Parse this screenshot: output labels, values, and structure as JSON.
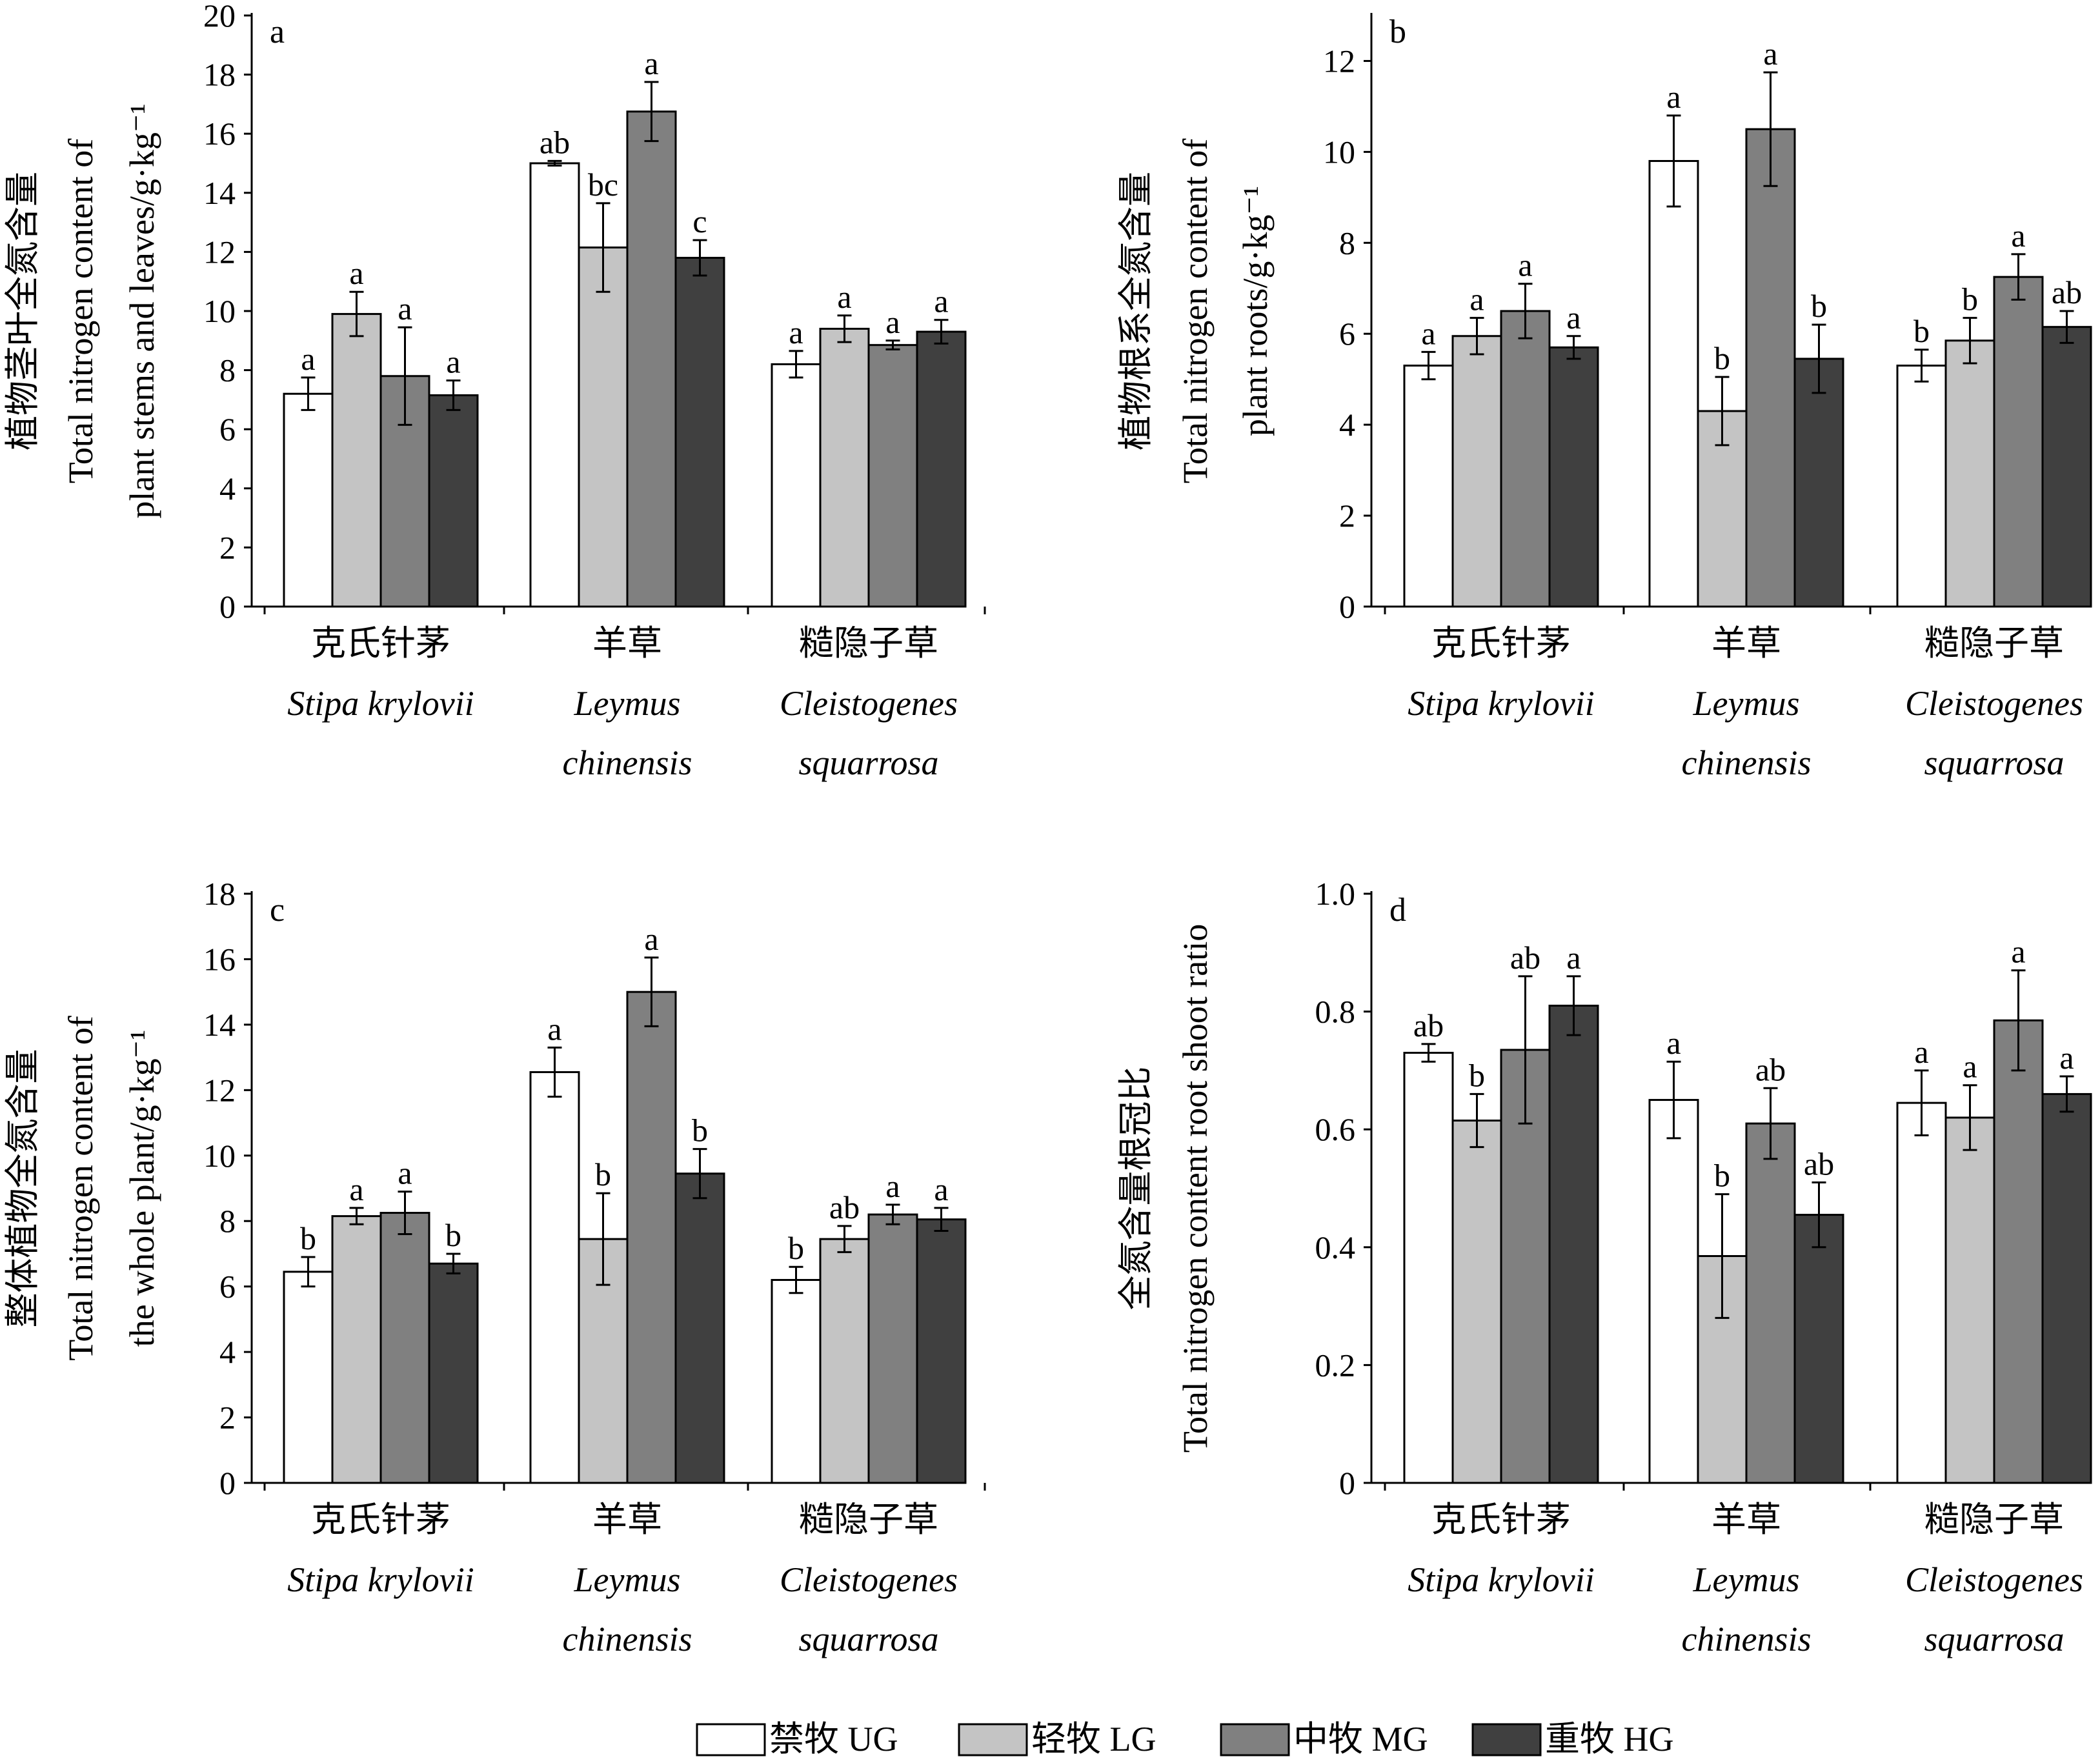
{
  "legend": {
    "entries": [
      {
        "key": "UG",
        "label": "禁牧 UG",
        "color": "#ffffff"
      },
      {
        "key": "LG",
        "label": "轻牧 LG",
        "color": "#c4c4c4"
      },
      {
        "key": "MG",
        "label": "中牧 MG",
        "color": "#808080"
      },
      {
        "key": "HG",
        "label": "重牧 HG",
        "color": "#404040"
      }
    ]
  },
  "species": [
    {
      "cn": "克氏针茅",
      "latin1": "Stipa krylovii",
      "latin2": ""
    },
    {
      "cn": "羊草",
      "latin1": "Leymus",
      "latin2": "chinensis"
    },
    {
      "cn": "糙隐子草",
      "latin1": "Cleistogenes",
      "latin2": "squarrosa"
    }
  ],
  "chart_data": [
    {
      "type": "bar",
      "panel": "a",
      "ylabel_cn": "植物茎叶全氮含量",
      "ylabel_en1": "Total nitrogen content of",
      "ylabel_en2": "plant stems and leaves/g·kg⁻¹",
      "ylim": [
        0,
        20
      ],
      "yticks": [
        "0",
        "2",
        "4",
        "6",
        "8",
        "10",
        "12",
        "14",
        "16",
        "18",
        "20"
      ],
      "categories": [
        "克氏针茅 Stipa krylovii",
        "羊草 Leymus chinensis",
        "糙隐子草 Cleistogenes squarrosa"
      ],
      "series": [
        {
          "name": "禁牧 UG",
          "values": [
            7.2,
            15.0,
            8.2
          ],
          "errors": [
            0.55,
            0.08,
            0.45
          ],
          "letters": [
            "a",
            "ab",
            "a"
          ]
        },
        {
          "name": "轻牧 LG",
          "values": [
            9.9,
            12.15,
            9.4
          ],
          "errors": [
            0.75,
            1.5,
            0.45
          ],
          "letters": [
            "a",
            "bc",
            "a"
          ]
        },
        {
          "name": "中牧 MG",
          "values": [
            7.8,
            16.75,
            8.85
          ],
          "errors": [
            1.65,
            1.0,
            0.15
          ],
          "letters": [
            "a",
            "a",
            "a"
          ]
        },
        {
          "name": "重牧 HG",
          "values": [
            7.15,
            11.8,
            9.3
          ],
          "errors": [
            0.5,
            0.6,
            0.4
          ],
          "letters": [
            "a",
            "c",
            "a"
          ]
        }
      ]
    },
    {
      "type": "bar",
      "panel": "b",
      "ylabel_cn": "植物根系全氮含量",
      "ylabel_en1": "Total nitrogen content of",
      "ylabel_en2": "plant roots/g·kg⁻¹",
      "ylim": [
        0,
        13
      ],
      "yticks": [
        "0",
        "2",
        "4",
        "6",
        "8",
        "10",
        "12"
      ],
      "categories": [
        "克氏针茅 Stipa krylovii",
        "羊草 Leymus chinensis",
        "糙隐子草 Cleistogenes squarrosa"
      ],
      "series": [
        {
          "name": "禁牧 UG",
          "values": [
            5.3,
            9.8,
            5.3
          ],
          "errors": [
            0.3,
            1.0,
            0.35
          ],
          "letters": [
            "a",
            "a",
            "b"
          ]
        },
        {
          "name": "轻牧 LG",
          "values": [
            5.95,
            4.3,
            5.85
          ],
          "errors": [
            0.4,
            0.75,
            0.5
          ],
          "letters": [
            "a",
            "b",
            "b"
          ]
        },
        {
          "name": "中牧 MG",
          "values": [
            6.5,
            10.5,
            7.25
          ],
          "errors": [
            0.6,
            1.25,
            0.5
          ],
          "letters": [
            "a",
            "a",
            "a"
          ]
        },
        {
          "name": "重牧 HG",
          "values": [
            5.7,
            5.45,
            6.15
          ],
          "errors": [
            0.25,
            0.75,
            0.35
          ],
          "letters": [
            "a",
            "b",
            "ab"
          ]
        }
      ]
    },
    {
      "type": "bar",
      "panel": "c",
      "ylabel_cn": "整体植物全氮含量",
      "ylabel_en1": "Total nitrogen content of",
      "ylabel_en2": "the whole plant/g·kg⁻¹",
      "ylim": [
        0,
        18
      ],
      "yticks": [
        "0",
        "2",
        "4",
        "6",
        "8",
        "10",
        "12",
        "14",
        "16",
        "18"
      ],
      "categories": [
        "克氏针茅 Stipa krylovii",
        "羊草 Leymus chinensis",
        "糙隐子草 Cleistogenes squarrosa"
      ],
      "series": [
        {
          "name": "禁牧 UG",
          "values": [
            6.45,
            12.55,
            6.2
          ],
          "errors": [
            0.45,
            0.75,
            0.4
          ],
          "letters": [
            "b",
            "a",
            "b"
          ]
        },
        {
          "name": "轻牧 LG",
          "values": [
            8.15,
            7.45,
            7.45
          ],
          "errors": [
            0.25,
            1.4,
            0.4
          ],
          "letters": [
            "a",
            "b",
            "ab"
          ]
        },
        {
          "name": "中牧 MG",
          "values": [
            8.25,
            15.0,
            8.2
          ],
          "errors": [
            0.65,
            1.05,
            0.3
          ],
          "letters": [
            "a",
            "a",
            "a"
          ]
        },
        {
          "name": "重牧 HG",
          "values": [
            6.7,
            9.45,
            8.05
          ],
          "errors": [
            0.3,
            0.75,
            0.35
          ],
          "letters": [
            "b",
            "b",
            "a"
          ]
        }
      ]
    },
    {
      "type": "bar",
      "panel": "d",
      "ylabel_cn": "全氮含量根冠比",
      "ylabel_en1": "Total nitrogen content root shoot ratio",
      "ylabel_en2": "",
      "ylim": [
        0,
        1.0
      ],
      "yticks": [
        "0",
        "0.2",
        "0.4",
        "0.6",
        "0.8",
        "1.0"
      ],
      "categories": [
        "克氏针茅 Stipa krylovii",
        "羊草 Leymus chinensis",
        "糙隐子草 Cleistogenes squarrosa"
      ],
      "series": [
        {
          "name": "禁牧 UG",
          "values": [
            0.73,
            0.65,
            0.645
          ],
          "errors": [
            0.015,
            0.065,
            0.055
          ],
          "letters": [
            "ab",
            "a",
            "a"
          ]
        },
        {
          "name": "轻牧 LG",
          "values": [
            0.615,
            0.385,
            0.62
          ],
          "errors": [
            0.045,
            0.105,
            0.055
          ],
          "letters": [
            "b",
            "b",
            "a"
          ]
        },
        {
          "name": "中牧 MG",
          "values": [
            0.735,
            0.61,
            0.785
          ],
          "errors": [
            0.125,
            0.06,
            0.085
          ],
          "letters": [
            "ab",
            "ab",
            "a"
          ]
        },
        {
          "name": "重牧 HG",
          "values": [
            0.81,
            0.455,
            0.66
          ],
          "errors": [
            0.05,
            0.055,
            0.03
          ],
          "letters": [
            "a",
            "ab",
            "a"
          ]
        }
      ]
    }
  ]
}
